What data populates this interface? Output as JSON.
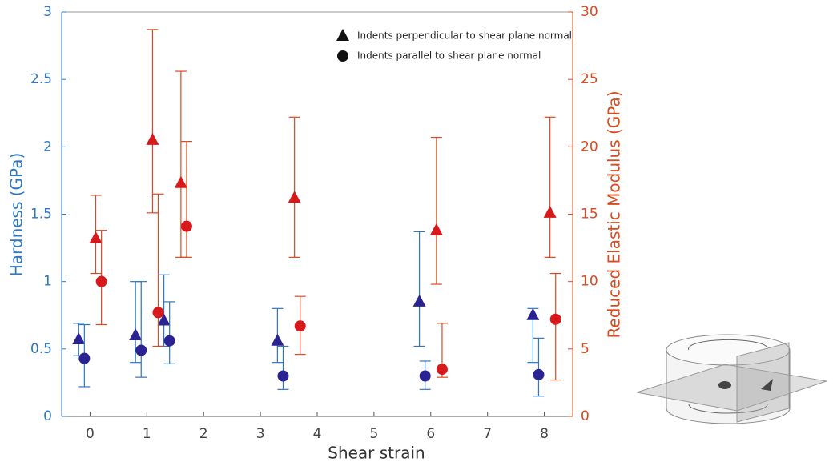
{
  "chart_data": {
    "type": "scatter",
    "x_label": "Shear strain",
    "y_label": "Hardness (GPa)",
    "y2_label": "Reduced Elastic Modulus (GPa)",
    "xlim": [
      -0.5,
      8.5
    ],
    "xticks": [
      0,
      1,
      2,
      3,
      4,
      5,
      6,
      7,
      8
    ],
    "ylim": [
      0,
      3
    ],
    "yticks": [
      0,
      0.5,
      1,
      1.5,
      2,
      2.5,
      3
    ],
    "y2lim": [
      0,
      30
    ],
    "y2ticks": [
      0,
      5,
      10,
      15,
      20,
      25,
      30
    ],
    "y_color": "#2f77c0",
    "y2_color": "#db4a1e",
    "legend": [
      {
        "label": "Indents perpendicular to shear plane normal",
        "marker": "triangle"
      },
      {
        "label": "Indents parallel to shear plane normal",
        "marker": "circle"
      }
    ],
    "series": [
      {
        "marker": "triangle",
        "color": "#2b2391",
        "axis": "y",
        "errcolor": "#2f77c0",
        "x": [
          -0.2,
          0.8,
          1.3,
          3.3,
          5.8,
          7.8
        ],
        "values": [
          0.57,
          0.6,
          0.71,
          0.56,
          0.85,
          0.75
        ],
        "lower": [
          0.45,
          0.4,
          0.52,
          0.4,
          0.52,
          0.4
        ],
        "upper": [
          0.69,
          1.0,
          1.05,
          0.8,
          1.37,
          0.8
        ]
      },
      {
        "marker": "circle",
        "color": "#2b2391",
        "axis": "y",
        "errcolor": "#2f77c0",
        "x": [
          -0.1,
          0.9,
          1.4,
          3.4,
          5.9,
          7.9
        ],
        "values": [
          0.43,
          0.49,
          0.56,
          0.3,
          0.3,
          0.31
        ],
        "lower": [
          0.22,
          0.29,
          0.39,
          0.2,
          0.2,
          0.15
        ],
        "upper": [
          0.68,
          1.0,
          0.85,
          0.52,
          0.41,
          0.58
        ]
      },
      {
        "marker": "triangle",
        "color": "#d7191c",
        "axis": "y2",
        "errcolor": "#db4a1e",
        "x": [
          0.1,
          1.1,
          1.6,
          3.6,
          6.1,
          8.1
        ],
        "values": [
          13.2,
          20.5,
          17.3,
          16.2,
          13.8,
          15.1
        ],
        "lower": [
          10.6,
          15.1,
          11.8,
          11.8,
          9.8,
          11.8
        ],
        "upper": [
          16.4,
          28.7,
          25.6,
          22.2,
          20.7,
          22.2
        ]
      },
      {
        "marker": "circle",
        "color": "#d7191c",
        "axis": "y2",
        "errcolor": "#db4a1e",
        "x": [
          0.2,
          1.2,
          1.7,
          3.7,
          6.2,
          8.2
        ],
        "values": [
          10.0,
          7.7,
          14.1,
          6.7,
          3.5,
          7.2
        ],
        "lower": [
          6.8,
          5.2,
          11.8,
          4.6,
          2.9,
          2.7
        ],
        "upper": [
          13.8,
          16.5,
          20.4,
          8.9,
          6.9,
          10.6
        ]
      }
    ]
  }
}
